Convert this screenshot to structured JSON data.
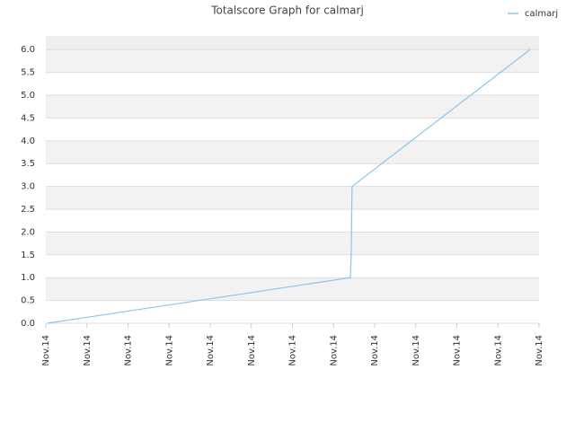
{
  "chart_data": {
    "type": "line",
    "title": "Totalscore Graph for calmarj",
    "x": [
      0.04,
      7.41,
      7.43,
      7.45,
      11.78
    ],
    "series": [
      {
        "name": "calmarj",
        "color": "#8cc4ec",
        "values": [
          0,
          1.0,
          1.5,
          3.0,
          6.0
        ]
      }
    ],
    "xlim": [
      0,
      12
    ],
    "xticks": [
      {
        "value": 0,
        "label": "Nov.14"
      },
      {
        "value": 1,
        "label": "Nov.14"
      },
      {
        "value": 2,
        "label": "Nov.14"
      },
      {
        "value": 3,
        "label": "Nov.14"
      },
      {
        "value": 4,
        "label": "Nov.14"
      },
      {
        "value": 5,
        "label": "Nov.14"
      },
      {
        "value": 6,
        "label": "Nov.14"
      },
      {
        "value": 7,
        "label": "Nov.14"
      },
      {
        "value": 8,
        "label": "Nov.14"
      },
      {
        "value": 9,
        "label": "Nov.14"
      },
      {
        "value": 10,
        "label": "Nov.14"
      },
      {
        "value": 11,
        "label": "Nov.14"
      },
      {
        "value": 12,
        "label": "Nov.14"
      }
    ],
    "ylim": [
      0,
      6.3
    ],
    "yticks": [
      {
        "value": 0,
        "label": "0.0"
      },
      {
        "value": 0.5,
        "label": "0.5"
      },
      {
        "value": 1,
        "label": "1.0"
      },
      {
        "value": 1.5,
        "label": "1.5"
      },
      {
        "value": 2,
        "label": "2.0"
      },
      {
        "value": 2.5,
        "label": "2.5"
      },
      {
        "value": 3,
        "label": "3.0"
      },
      {
        "value": 3.5,
        "label": "3.5"
      },
      {
        "value": 4,
        "label": "4.0"
      },
      {
        "value": 4.5,
        "label": "4.5"
      },
      {
        "value": 5,
        "label": "5.0"
      },
      {
        "value": 5.5,
        "label": "5.5"
      },
      {
        "value": 6,
        "label": "6.0"
      }
    ],
    "grid": true,
    "legend": "top-right"
  }
}
